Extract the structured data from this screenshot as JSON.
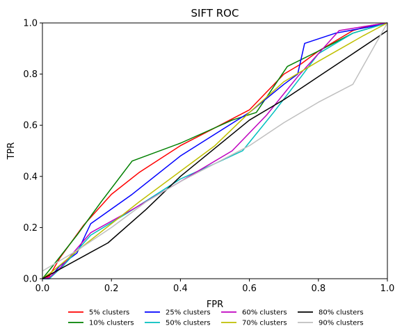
{
  "chart_data": {
    "type": "line",
    "title": "SIFT ROC",
    "xlabel": "FPR",
    "ylabel": "TPR",
    "xlim": [
      0,
      1
    ],
    "ylim": [
      0,
      1
    ],
    "xticks": [
      "0.0",
      "0.2",
      "0.4",
      "0.6",
      "0.8",
      "1.0"
    ],
    "yticks": [
      "0.0",
      "0.2",
      "0.4",
      "0.6",
      "0.8",
      "1.0"
    ],
    "grid": false,
    "legend_position": "bottom",
    "series": [
      {
        "name": "5% clusters",
        "color": "#ff0000",
        "points": [
          [
            0,
            0
          ],
          [
            0.02,
            0.01
          ],
          [
            0.05,
            0.08
          ],
          [
            0.12,
            0.21
          ],
          [
            0.2,
            0.33
          ],
          [
            0.28,
            0.415
          ],
          [
            0.4,
            0.52
          ],
          [
            0.5,
            0.59
          ],
          [
            0.6,
            0.66
          ],
          [
            0.7,
            0.8
          ],
          [
            0.75,
            0.84
          ],
          [
            0.8,
            0.89
          ],
          [
            0.9,
            0.97
          ],
          [
            0.95,
            0.99
          ],
          [
            1.0,
            1.0
          ]
        ]
      },
      {
        "name": "10% clusters",
        "color": "#008000",
        "points": [
          [
            0,
            0
          ],
          [
            0.03,
            0.05
          ],
          [
            0.1,
            0.17
          ],
          [
            0.17,
            0.3
          ],
          [
            0.26,
            0.46
          ],
          [
            0.4,
            0.53
          ],
          [
            0.55,
            0.62
          ],
          [
            0.62,
            0.65
          ],
          [
            0.71,
            0.83
          ],
          [
            0.8,
            0.89
          ],
          [
            0.9,
            0.96
          ],
          [
            1.0,
            1.0
          ]
        ]
      },
      {
        "name": "25% clusters",
        "color": "#0000ff",
        "points": [
          [
            0,
            0
          ],
          [
            0.02,
            0.0
          ],
          [
            0.05,
            0.05
          ],
          [
            0.1,
            0.1
          ],
          [
            0.14,
            0.215
          ],
          [
            0.26,
            0.33
          ],
          [
            0.4,
            0.48
          ],
          [
            0.6,
            0.65
          ],
          [
            0.7,
            0.76
          ],
          [
            0.74,
            0.8
          ],
          [
            0.76,
            0.92
          ],
          [
            0.85,
            0.96
          ],
          [
            0.95,
            0.985
          ],
          [
            1.0,
            1.0
          ]
        ]
      },
      {
        "name": "50% clusters",
        "color": "#00bfbf",
        "points": [
          [
            0,
            0
          ],
          [
            0.02,
            0.0
          ],
          [
            0.06,
            0.05
          ],
          [
            0.14,
            0.17
          ],
          [
            0.25,
            0.26
          ],
          [
            0.4,
            0.39
          ],
          [
            0.5,
            0.45
          ],
          [
            0.58,
            0.5
          ],
          [
            0.67,
            0.65
          ],
          [
            0.75,
            0.79
          ],
          [
            0.8,
            0.88
          ],
          [
            0.9,
            0.96
          ],
          [
            1.0,
            1.0
          ]
        ]
      },
      {
        "name": "60% clusters",
        "color": "#bf00bf",
        "points": [
          [
            0,
            0
          ],
          [
            0.02,
            0.005
          ],
          [
            0.05,
            0.04
          ],
          [
            0.14,
            0.18
          ],
          [
            0.26,
            0.27
          ],
          [
            0.4,
            0.38
          ],
          [
            0.55,
            0.5
          ],
          [
            0.65,
            0.64
          ],
          [
            0.74,
            0.79
          ],
          [
            0.8,
            0.88
          ],
          [
            0.86,
            0.97
          ],
          [
            0.95,
            0.99
          ],
          [
            1.0,
            1.0
          ]
        ]
      },
      {
        "name": "70% clusters",
        "color": "#bfbf00",
        "points": [
          [
            0,
            0
          ],
          [
            0.03,
            0.03
          ],
          [
            0.12,
            0.13
          ],
          [
            0.28,
            0.3
          ],
          [
            0.4,
            0.42
          ],
          [
            0.5,
            0.52
          ],
          [
            0.6,
            0.65
          ],
          [
            0.7,
            0.77
          ],
          [
            0.8,
            0.85
          ],
          [
            0.93,
            0.95
          ],
          [
            1.0,
            1.0
          ]
        ]
      },
      {
        "name": "80% clusters",
        "color": "#000000",
        "points": [
          [
            0,
            0
          ],
          [
            0.19,
            0.14
          ],
          [
            0.3,
            0.27
          ],
          [
            0.4,
            0.4
          ],
          [
            0.5,
            0.51
          ],
          [
            0.6,
            0.62
          ],
          [
            0.7,
            0.7
          ],
          [
            0.8,
            0.79
          ],
          [
            0.9,
            0.88
          ],
          [
            1.0,
            0.97
          ]
        ]
      },
      {
        "name": "90% clusters",
        "color": "#bfbfbf",
        "points": [
          [
            0,
            0.03
          ],
          [
            0.1,
            0.11
          ],
          [
            0.2,
            0.2
          ],
          [
            0.3,
            0.3
          ],
          [
            0.4,
            0.38
          ],
          [
            0.5,
            0.45
          ],
          [
            0.6,
            0.52
          ],
          [
            0.7,
            0.61
          ],
          [
            0.8,
            0.69
          ],
          [
            0.9,
            0.76
          ],
          [
            1.0,
            1.0
          ]
        ]
      }
    ]
  }
}
